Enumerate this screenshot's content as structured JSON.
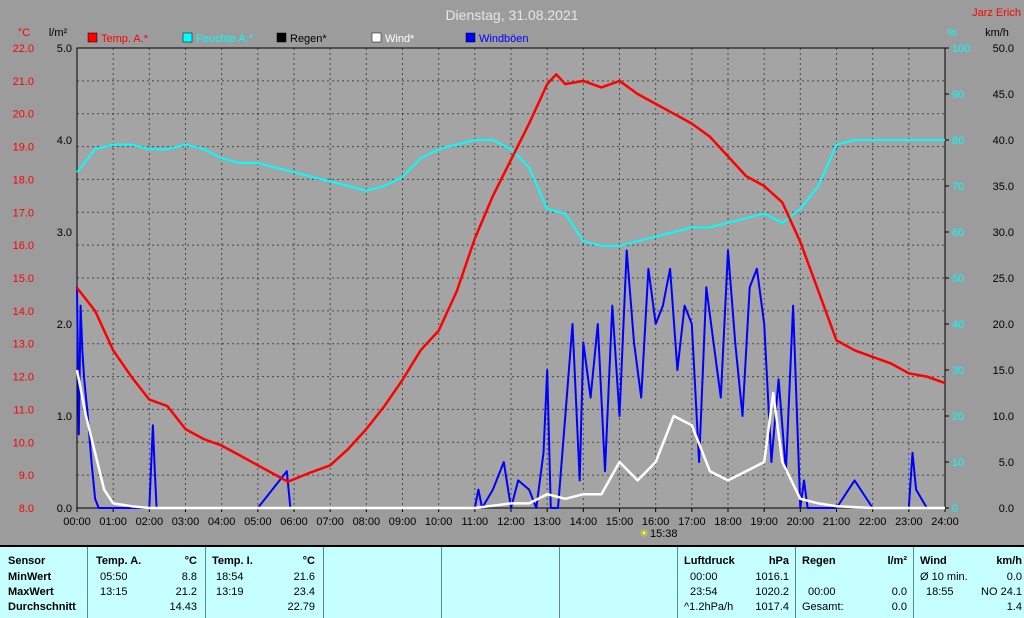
{
  "title": "Dienstag, 31.08.2021",
  "station": "Jarz Erich",
  "units": {
    "left_temp": "°C",
    "left_rain": "l/m²",
    "right_hum": "%",
    "right_wind": "km/h"
  },
  "legend": [
    {
      "label": "Temp. A.*",
      "color": "#ff0000"
    },
    {
      "label": "Feuchte A.*",
      "color": "#00ffff"
    },
    {
      "label": "Regen*",
      "color": "#000000"
    },
    {
      "label": "Wind*",
      "color": "#ffffff"
    },
    {
      "label": "Windböen",
      "color": "#0000ff"
    }
  ],
  "sun_marker": "15:38",
  "chart_data": {
    "type": "line",
    "title": "Dienstag, 31.08.2021",
    "x_ticks": [
      "00:00",
      "01:00",
      "02:00",
      "03:00",
      "04:00",
      "05:00",
      "06:00",
      "07:00",
      "08:00",
      "09:00",
      "10:00",
      "11:00",
      "12:00",
      "13:00",
      "14:00",
      "15:00",
      "16:00",
      "17:00",
      "18:00",
      "19:00",
      "20:00",
      "21:00",
      "22:00",
      "23:00",
      "24:00"
    ],
    "axes": {
      "temp": {
        "ticks": [
          "22.0",
          "21.0",
          "20.0",
          "19.0",
          "18.0",
          "17.0",
          "16.0",
          "15.0",
          "14.0",
          "13.0",
          "12.0",
          "11.0",
          "10.0",
          "9.0",
          "8.0"
        ],
        "range": [
          8,
          22
        ]
      },
      "rain": {
        "ticks": [
          "5.0",
          "4.0",
          "3.0",
          "2.0",
          "1.0",
          "0.0"
        ],
        "range": [
          0,
          5
        ]
      },
      "humidity": {
        "ticks": [
          "100",
          "90",
          "80",
          "70",
          "60",
          "50",
          "40",
          "30",
          "20",
          "10",
          "0"
        ],
        "range": [
          0,
          100
        ]
      },
      "wind": {
        "ticks": [
          "50.0",
          "45.0",
          "40.0",
          "35.0",
          "30.0",
          "25.0",
          "20.0",
          "15.0",
          "10.0",
          "5.0",
          "0.0"
        ],
        "range": [
          0,
          50
        ]
      }
    },
    "grid": true,
    "series": [
      {
        "name": "Temp. A.*",
        "axis": "temp",
        "color": "#ff0000",
        "x": [
          0,
          0.5,
          1,
          1.5,
          2,
          2.5,
          3,
          3.5,
          4,
          4.5,
          5,
          5.5,
          5.83,
          6.5,
          7,
          7.5,
          8,
          8.5,
          9,
          9.5,
          10,
          10.5,
          11,
          11.5,
          12,
          12.5,
          13,
          13.25,
          13.5,
          14,
          14.5,
          15,
          15.5,
          16,
          16.5,
          17,
          17.5,
          18,
          18.5,
          19,
          19.5,
          20,
          20.5,
          21,
          21.5,
          22,
          22.5,
          23,
          23.5,
          24
        ],
        "y": [
          14.7,
          14.0,
          12.8,
          12.0,
          11.3,
          11.1,
          10.4,
          10.1,
          9.9,
          9.6,
          9.3,
          9.0,
          8.8,
          9.1,
          9.3,
          9.8,
          10.4,
          11.1,
          11.9,
          12.8,
          13.4,
          14.6,
          16.2,
          17.5,
          18.6,
          19.7,
          20.9,
          21.2,
          20.9,
          21.0,
          20.8,
          21.0,
          20.6,
          20.3,
          20.0,
          19.7,
          19.3,
          18.7,
          18.1,
          17.8,
          17.3,
          16.1,
          14.6,
          13.1,
          12.8,
          12.6,
          12.4,
          12.1,
          12.0,
          11.8
        ]
      },
      {
        "name": "Feuchte A.*",
        "axis": "humidity",
        "color": "#00ffff",
        "x": [
          0,
          0.5,
          1,
          1.5,
          2,
          2.5,
          3,
          3.5,
          4,
          4.5,
          5,
          5.5,
          6,
          6.5,
          7,
          7.5,
          8,
          8.5,
          9,
          9.5,
          10,
          10.5,
          11,
          11.5,
          12,
          12.5,
          13,
          13.5,
          14,
          14.5,
          15,
          15.5,
          16,
          16.5,
          17,
          17.5,
          18,
          18.5,
          19,
          19.5,
          20,
          20.5,
          21,
          21.5,
          22,
          22.5,
          23,
          23.5,
          24
        ],
        "y": [
          73,
          78,
          79,
          79,
          78,
          78,
          79,
          78,
          76,
          75,
          75,
          74,
          73,
          72,
          71,
          70,
          69,
          70,
          72,
          76,
          78,
          79,
          80,
          80,
          78,
          74,
          65,
          64,
          58,
          57,
          57,
          58,
          59,
          60,
          61,
          61,
          62,
          63,
          64,
          62,
          65,
          70,
          79,
          80,
          80,
          80,
          80,
          80,
          80
        ]
      },
      {
        "name": "Wind*",
        "axis": "wind",
        "color": "#ffffff",
        "x": [
          0,
          0.25,
          0.5,
          0.75,
          1,
          1.5,
          2,
          2.5,
          3,
          4,
          5,
          6,
          7,
          8,
          9,
          10,
          11,
          12,
          12.5,
          13,
          13.5,
          14,
          14.5,
          15,
          15.5,
          16,
          16.5,
          17,
          17.5,
          18,
          18.5,
          19,
          19.25,
          19.5,
          20,
          20.5,
          21,
          22,
          23,
          24
        ],
        "y": [
          15.0,
          10.0,
          6.0,
          2.0,
          0.5,
          0.2,
          0,
          0,
          0,
          0,
          0,
          0,
          0,
          0,
          0,
          0,
          0,
          0.5,
          0.5,
          1.5,
          1.0,
          1.5,
          1.5,
          5.0,
          3.0,
          5.0,
          10.0,
          9.0,
          4.0,
          3.0,
          4.0,
          5.0,
          12.5,
          5.0,
          1.0,
          0.5,
          0.2,
          0,
          0,
          0
        ]
      },
      {
        "name": "Windböen",
        "axis": "wind",
        "color": "#0000ff",
        "x": [
          0,
          0.05,
          0.1,
          0.15,
          0.2,
          0.3,
          0.4,
          0.5,
          0.6,
          1.0,
          1.5,
          2.0,
          2.1,
          2.15,
          2.2,
          3.0,
          4.0,
          5.0,
          5.8,
          5.85,
          5.9,
          6.0,
          7.0,
          8.0,
          9.0,
          10.0,
          11.0,
          11.1,
          11.2,
          11.5,
          11.8,
          12.0,
          12.2,
          12.5,
          12.7,
          12.9,
          13.0,
          13.1,
          13.3,
          13.5,
          13.7,
          13.9,
          14.0,
          14.2,
          14.4,
          14.6,
          14.8,
          15.0,
          15.2,
          15.4,
          15.6,
          15.8,
          16.0,
          16.2,
          16.4,
          16.6,
          16.8,
          17.0,
          17.2,
          17.4,
          17.6,
          17.8,
          18.0,
          18.2,
          18.4,
          18.6,
          18.8,
          19.0,
          19.2,
          19.4,
          19.6,
          19.8,
          20.0,
          20.1,
          20.2,
          20.5,
          20.8,
          21.0,
          21.5,
          22.0,
          22.5,
          23.0,
          23.1,
          23.2,
          23.5,
          24.0
        ],
        "y": [
          24,
          8,
          22,
          17,
          14,
          10,
          5,
          1,
          0,
          0,
          0,
          0,
          9,
          4,
          0,
          0,
          0,
          0,
          4,
          2,
          0,
          0,
          0,
          0,
          0,
          0,
          0,
          2,
          0,
          2,
          5,
          0,
          3,
          2,
          0,
          6,
          15,
          0,
          0,
          10,
          20,
          3,
          18,
          12,
          20,
          4,
          22,
          10,
          28,
          18,
          12,
          26,
          20,
          22,
          26,
          15,
          22,
          20,
          5,
          24,
          18,
          12,
          28,
          18,
          10,
          24,
          26,
          20,
          5,
          14,
          4,
          22,
          0,
          3,
          0,
          0,
          0,
          0,
          3,
          0,
          0,
          0,
          6,
          2,
          0,
          0
        ]
      }
    ],
    "rain_series": {
      "name": "Regen*",
      "axis": "rain",
      "values_all_zero": true
    }
  },
  "table": {
    "sensor": {
      "header": "Sensor",
      "rows": [
        "MinWert",
        "MaxWert",
        "Durchschnitt"
      ]
    },
    "temp_a": {
      "header": "Temp. A.",
      "unit": "°C",
      "times": [
        "05:50",
        "13:15",
        ""
      ],
      "values": [
        "8.8",
        "21.2",
        "14.43"
      ]
    },
    "temp_i": {
      "header": "Temp. I.",
      "unit": "°C",
      "times": [
        "18:54",
        "13:19",
        ""
      ],
      "values": [
        "21.6",
        "23.4",
        "22.79"
      ]
    },
    "luftdruck": {
      "header": "Luftdruck",
      "unit": "hPa",
      "times": [
        "00:00",
        "23:54",
        "^1.2hPa/h"
      ],
      "values": [
        "1016.1",
        "1020.2",
        "1017.4"
      ]
    },
    "regen": {
      "header": "Regen",
      "unit": "l/m²",
      "times": [
        "",
        "00:00",
        "Gesamt:"
      ],
      "values": [
        "",
        "0.0",
        "0.0"
      ]
    },
    "wind": {
      "header": "Wind",
      "unit": "km/h",
      "times": [
        "Ø 10 min.",
        "18:55",
        ""
      ],
      "values": [
        "0.0",
        "NO 24.1",
        "1.4"
      ]
    }
  }
}
